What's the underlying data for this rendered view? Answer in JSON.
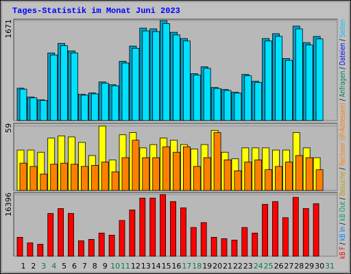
{
  "chart_data": [
    {
      "type": "bar",
      "title": "Tages-Statistik im Monat Juni 2023",
      "ylim": [
        0,
        1671
      ],
      "yticks": [
        1671
      ],
      "series": [
        {
          "name": "Anfragen",
          "color": "#00a0c8",
          "legend_color": "#00805c",
          "values": [
            541,
            392,
            346,
            1130,
            1290,
            1164,
            438,
            461,
            645,
            599,
            991,
            1245,
            1544,
            1533,
            1671,
            1475,
            1371,
            784,
            899,
            553,
            519,
            473,
            772,
            657,
            1371,
            1452,
            1037,
            1579,
            1302,
            1406,
            null
          ]
        },
        {
          "name": "Dateien",
          "color": "#00e0ff",
          "legend_color": "#0000ff",
          "values": [
            525,
            380,
            336,
            1096,
            1251,
            1129,
            425,
            447,
            626,
            581,
            961,
            1208,
            1498,
            1487,
            1621,
            1431,
            1330,
            760,
            872,
            536,
            503,
            459,
            749,
            637,
            1330,
            1408,
            1006,
            1532,
            1263,
            1364,
            null
          ]
        },
        {
          "name": "Seiten",
          "legend_color": "#00c0ff"
        }
      ]
    },
    {
      "type": "bar",
      "ylim": [
        0,
        59
      ],
      "yticks": [
        59
      ],
      "series": [
        {
          "name": "Besuche",
          "color": "#ffff00",
          "legend_color": "#c0a000",
          "values": [
            37,
            37,
            35,
            48,
            50,
            49,
            44,
            32,
            59,
            28,
            51,
            53,
            39,
            42,
            48,
            46,
            42,
            38,
            42,
            55,
            35,
            29,
            39,
            39,
            39,
            37,
            37,
            53,
            39,
            30,
            null
          ]
        },
        {
          "name": "Rechner (IP-Adressen)",
          "color": "#ff8000",
          "legend_color": "#ff8000",
          "values": [
            25,
            22,
            15,
            24,
            25,
            24,
            22,
            23,
            26,
            17,
            30,
            46,
            30,
            30,
            40,
            35,
            40,
            22,
            30,
            53,
            28,
            18,
            26,
            28,
            19,
            22,
            26,
            32,
            30,
            19,
            null
          ]
        }
      ]
    },
    {
      "type": "bar",
      "ylim": [
        0,
        16396
      ],
      "yticks": [
        16396
      ],
      "categories": [
        "1",
        "2",
        "3",
        "4",
        "5",
        "6",
        "7",
        "8",
        "9",
        "10",
        "11",
        "12",
        "13",
        "14",
        "15",
        "16",
        "17",
        "18",
        "19",
        "20",
        "21",
        "22",
        "23",
        "24",
        "25",
        "26",
        "27",
        "28",
        "29",
        "30",
        "31"
      ],
      "label_colors": [
        "#000",
        "#000",
        "#008040",
        "#008040",
        "#000",
        "#000",
        "#000",
        "#000",
        "#000",
        "#008040",
        "#008040",
        "#000",
        "#000",
        "#000",
        "#000",
        "#000",
        "#008040",
        "#008040",
        "#000",
        "#000",
        "#000",
        "#000",
        "#000",
        "#008040",
        "#008040",
        "#000",
        "#000",
        "#000",
        "#000",
        "#000",
        "#008040"
      ],
      "legend_separator": " / ",
      "series": [
        {
          "name": "kB F",
          "color": "#ff0000",
          "legend_color": "#ff0000",
          "values": [
            5030,
            3540,
            3170,
            11365,
            12670,
            11365,
            4100,
            4470,
            6150,
            5590,
            9500,
            12300,
            15460,
            15460,
            16396,
            14530,
            12860,
            7640,
            8940,
            5030,
            4660,
            4280,
            7640,
            6150,
            13790,
            14530,
            10250,
            15650,
            12670,
            13970,
            null
          ]
        },
        {
          "name": "kB In",
          "legend_color": "#0080ff"
        },
        {
          "name": "kB Out",
          "legend_color": "#00a060"
        }
      ]
    }
  ]
}
